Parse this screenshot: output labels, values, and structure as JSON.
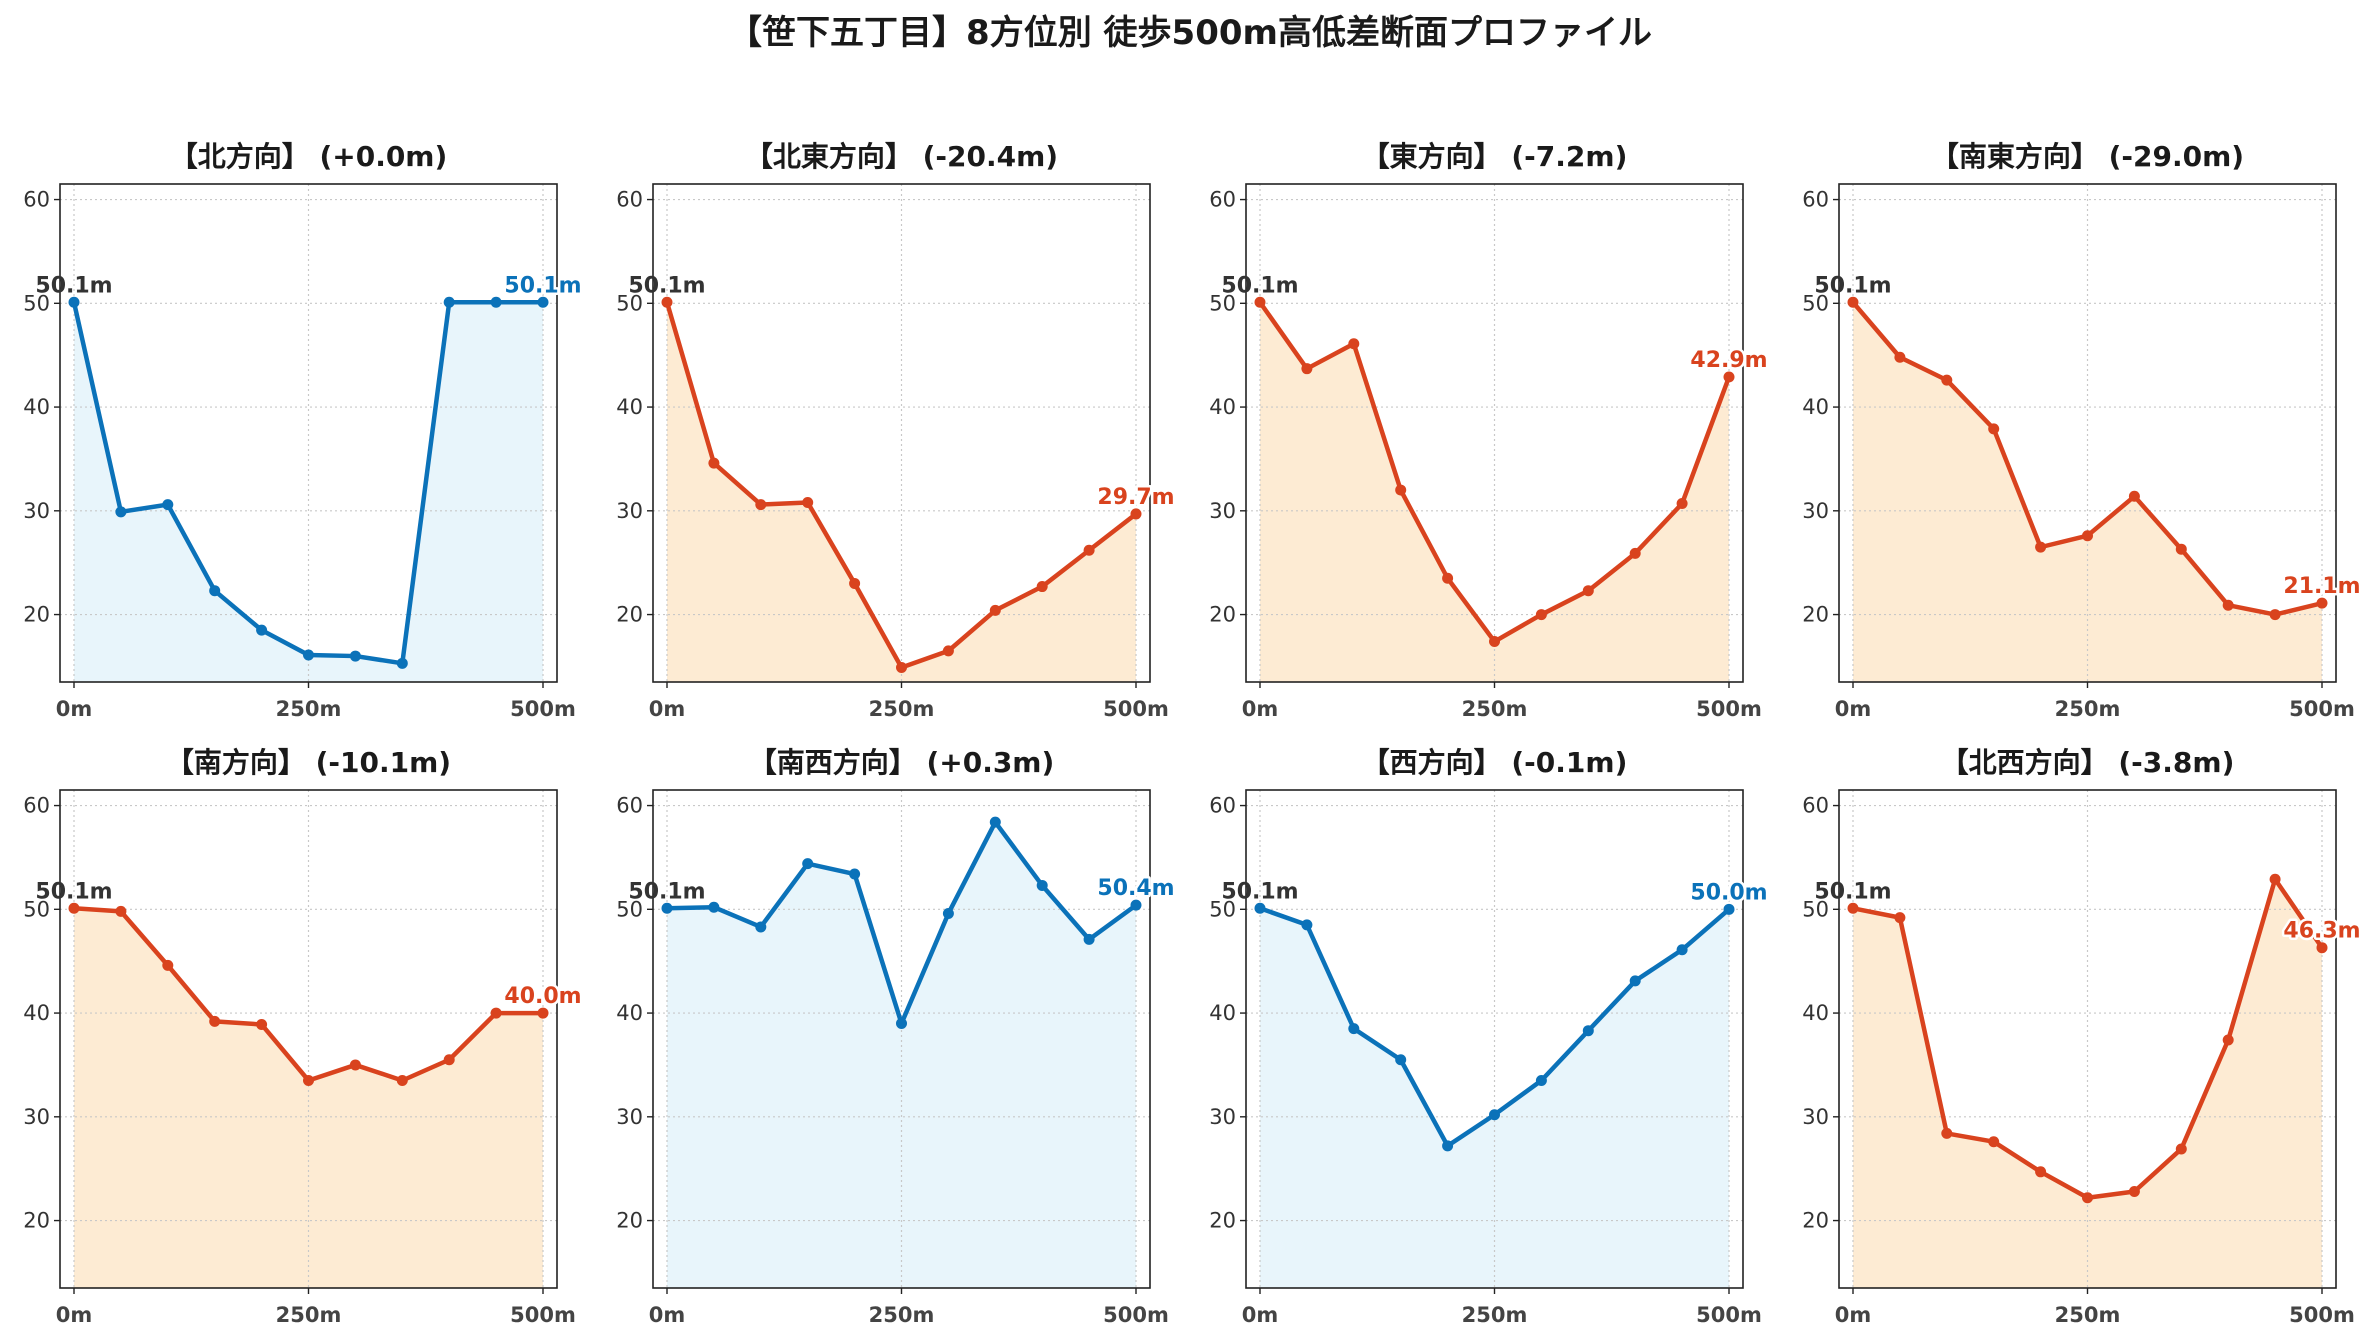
{
  "title": "【笹下五丁目】8方位別 徒歩500m高低差断面プロファイル",
  "colors": {
    "up_line": "#0b72b9",
    "up_fill": "#e8f5fb",
    "down_line": "#d9431e",
    "down_fill": "#fdebd3",
    "start_label": "#333333",
    "grid": "#c8c8c8"
  },
  "chart_data": [
    {
      "type": "line",
      "title": "【北方向】 (+0.0m)",
      "trend": "up",
      "x": [
        0,
        50,
        100,
        150,
        200,
        250,
        300,
        350,
        400,
        450,
        500
      ],
      "y": [
        50.1,
        29.9,
        30.6,
        22.3,
        18.5,
        16.1,
        16.0,
        15.3,
        50.1,
        50.1,
        50.1
      ],
      "start_label": "50.1m",
      "end_label": "50.1m",
      "xticks": [
        "0m",
        "250m",
        "500m"
      ],
      "ylim": [
        13.5,
        61.5
      ],
      "yticks": [
        20,
        30,
        40,
        50,
        60
      ],
      "grid": true
    },
    {
      "type": "line",
      "title": "【北東方向】 (-20.4m)",
      "trend": "down",
      "x": [
        0,
        50,
        100,
        150,
        200,
        250,
        300,
        350,
        400,
        450,
        500
      ],
      "y": [
        50.1,
        34.6,
        30.6,
        30.8,
        23.0,
        14.9,
        16.5,
        20.4,
        22.7,
        26.2,
        29.7
      ],
      "start_label": "50.1m",
      "end_label": "29.7m",
      "xticks": [
        "0m",
        "250m",
        "500m"
      ],
      "ylim": [
        13.5,
        61.5
      ],
      "yticks": [
        20,
        30,
        40,
        50,
        60
      ],
      "grid": true
    },
    {
      "type": "line",
      "title": "【東方向】 (-7.2m)",
      "trend": "down",
      "x": [
        0,
        50,
        100,
        150,
        200,
        250,
        300,
        350,
        400,
        450,
        500
      ],
      "y": [
        50.1,
        43.7,
        46.1,
        32.0,
        23.5,
        17.4,
        20.0,
        22.3,
        25.9,
        30.7,
        42.9
      ],
      "start_label": "50.1m",
      "end_label": "42.9m",
      "xticks": [
        "0m",
        "250m",
        "500m"
      ],
      "ylim": [
        13.5,
        61.5
      ],
      "yticks": [
        20,
        30,
        40,
        50,
        60
      ],
      "grid": true
    },
    {
      "type": "line",
      "title": "【南東方向】 (-29.0m)",
      "trend": "down",
      "x": [
        0,
        50,
        100,
        150,
        200,
        250,
        300,
        350,
        400,
        450,
        500
      ],
      "y": [
        50.1,
        44.8,
        42.6,
        37.9,
        26.5,
        27.6,
        31.4,
        26.3,
        20.9,
        20.0,
        21.1
      ],
      "start_label": "50.1m",
      "end_label": "21.1m",
      "xticks": [
        "0m",
        "250m",
        "500m"
      ],
      "ylim": [
        13.5,
        61.5
      ],
      "yticks": [
        20,
        30,
        40,
        50,
        60
      ],
      "grid": true
    },
    {
      "type": "line",
      "title": "【南方向】 (-10.1m)",
      "trend": "down",
      "x": [
        0,
        50,
        100,
        150,
        200,
        250,
        300,
        350,
        400,
        450,
        500
      ],
      "y": [
        50.1,
        49.8,
        44.6,
        39.2,
        38.9,
        33.5,
        35.0,
        33.5,
        35.5,
        40.0,
        40.0
      ],
      "start_label": "50.1m",
      "end_label": "40.0m",
      "xticks": [
        "0m",
        "250m",
        "500m"
      ],
      "ylim": [
        13.5,
        61.5
      ],
      "yticks": [
        20,
        30,
        40,
        50,
        60
      ],
      "grid": true
    },
    {
      "type": "line",
      "title": "【南西方向】 (+0.3m)",
      "trend": "up",
      "x": [
        0,
        50,
        100,
        150,
        200,
        250,
        300,
        350,
        400,
        450,
        500
      ],
      "y": [
        50.1,
        50.2,
        48.3,
        54.4,
        53.4,
        39.0,
        49.6,
        58.4,
        52.3,
        47.1,
        50.4
      ],
      "start_label": "50.1m",
      "end_label": "50.4m",
      "xticks": [
        "0m",
        "250m",
        "500m"
      ],
      "ylim": [
        13.5,
        61.5
      ],
      "yticks": [
        20,
        30,
        40,
        50,
        60
      ],
      "grid": true
    },
    {
      "type": "line",
      "title": "【西方向】 (-0.1m)",
      "trend": "up",
      "x": [
        0,
        50,
        100,
        150,
        200,
        250,
        300,
        350,
        400,
        450,
        500
      ],
      "y": [
        50.1,
        48.5,
        38.5,
        35.5,
        27.2,
        30.2,
        33.5,
        38.3,
        43.1,
        46.1,
        50.0
      ],
      "start_label": "50.1m",
      "end_label": "50.0m",
      "xticks": [
        "0m",
        "250m",
        "500m"
      ],
      "ylim": [
        13.5,
        61.5
      ],
      "yticks": [
        20,
        30,
        40,
        50,
        60
      ],
      "grid": true
    },
    {
      "type": "line",
      "title": "【北西方向】 (-3.8m)",
      "trend": "down",
      "x": [
        0,
        50,
        100,
        150,
        200,
        250,
        300,
        350,
        400,
        450,
        500
      ],
      "y": [
        50.1,
        49.2,
        28.4,
        27.6,
        24.7,
        22.2,
        22.8,
        26.9,
        37.4,
        52.9,
        46.3
      ],
      "start_label": "50.1m",
      "end_label": "46.3m",
      "xticks": [
        "0m",
        "250m",
        "500m"
      ],
      "ylim": [
        13.5,
        61.5
      ],
      "yticks": [
        20,
        30,
        40,
        50,
        60
      ],
      "grid": true
    }
  ]
}
